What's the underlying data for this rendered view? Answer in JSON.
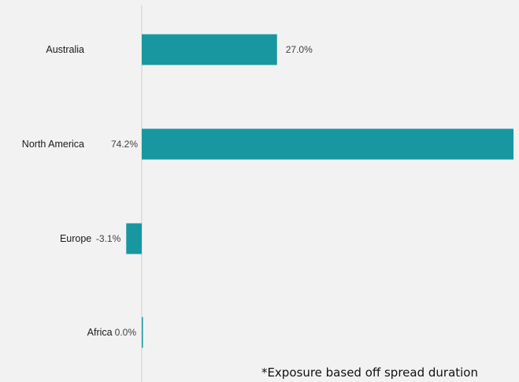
{
  "chart_data": {
    "type": "bar",
    "orientation": "horizontal",
    "categories": [
      "Australia",
      "North America",
      "Europe",
      "Africa"
    ],
    "values": [
      27.0,
      74.2,
      -3.1,
      0.0
    ],
    "value_labels": [
      "27.0%",
      "74.2%",
      "-3.1%",
      "0.0%"
    ],
    "unit": "%",
    "bar_color": "#1897a0",
    "axis_color": "#d0d0d0",
    "grid": false,
    "legend": "none",
    "annotation": "*Exposure based off spread duration"
  }
}
